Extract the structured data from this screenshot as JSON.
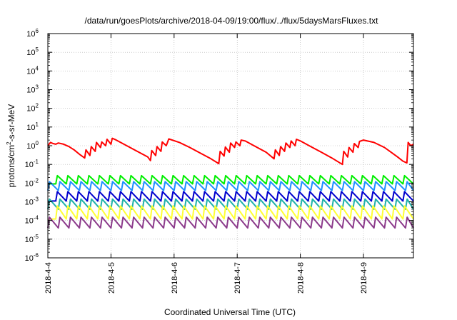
{
  "chart_data": {
    "type": "line",
    "title": "/data/run/goesPlots/archive/2018-04-09/19:00/flux/../flux/5daysMarsFluxes.txt",
    "xlabel": "Coordinated Universal Time (UTC)",
    "ylabel": {
      "base": "protons/cm",
      "exp": "2",
      "rest": "-s-sr-MeV"
    },
    "yscale": "log",
    "ylim_exp": [
      -6,
      6
    ],
    "y_ticks": [
      {
        "base": "10",
        "exp": "-6",
        "value": 1e-06
      },
      {
        "base": "10",
        "exp": "-5",
        "value": 1e-05
      },
      {
        "base": "10",
        "exp": "-4",
        "value": 0.0001
      },
      {
        "base": "10",
        "exp": "-3",
        "value": 0.001
      },
      {
        "base": "10",
        "exp": "-2",
        "value": 0.01
      },
      {
        "base": "10",
        "exp": "-1",
        "value": 0.1
      },
      {
        "base": "10",
        "exp": "0",
        "value": 1
      },
      {
        "base": "10",
        "exp": "1",
        "value": 10
      },
      {
        "base": "10",
        "exp": "2",
        "value": 100
      },
      {
        "base": "10",
        "exp": "3",
        "value": 1000
      },
      {
        "base": "10",
        "exp": "4",
        "value": 10000
      },
      {
        "base": "10",
        "exp": "5",
        "value": 100000
      },
      {
        "base": "10",
        "exp": "6",
        "value": 1000000
      }
    ],
    "xlim": [
      "2018-04-04T00:00",
      "2018-04-09T19:00"
    ],
    "x_ticks": [
      "2018-4-4",
      "2018-4-5",
      "2018-4-6",
      "2018-4-7",
      "2018-4-8",
      "2018-4-9"
    ],
    "grid": true,
    "legend": "none",
    "series": [
      {
        "color": "#ff0000",
        "x": [
          "2018-04-04T00:00",
          "2018-04-04T01:00",
          "2018-04-04T02:00",
          "2018-04-04T03:00",
          "2018-04-04T04:00",
          "2018-04-04T06:00",
          "2018-04-04T08:00",
          "2018-04-04T10:00",
          "2018-04-04T12:00",
          "2018-04-04T14:00",
          "2018-04-04T14:30",
          "2018-04-04T16:00",
          "2018-04-04T16:30",
          "2018-04-04T18:00",
          "2018-04-04T18:30",
          "2018-04-04T20:00",
          "2018-04-04T20:30",
          "2018-04-04T22:00",
          "2018-04-04T22:30",
          "2018-04-05T00:00",
          "2018-04-05T00:30",
          "2018-04-05T02:00",
          "2018-04-05T06:00",
          "2018-04-05T10:00",
          "2018-04-05T14:00",
          "2018-04-05T15:00",
          "2018-04-05T15:30",
          "2018-04-05T17:00",
          "2018-04-05T17:30",
          "2018-04-05T19:00",
          "2018-04-05T19:30",
          "2018-04-05T21:00",
          "2018-04-05T22:00",
          "2018-04-06T02:00",
          "2018-04-06T06:00",
          "2018-04-06T10:00",
          "2018-04-06T14:00",
          "2018-04-06T17:00",
          "2018-04-06T17:30",
          "2018-04-06T19:00",
          "2018-04-06T19:30",
          "2018-04-06T21:00",
          "2018-04-06T21:30",
          "2018-04-06T23:00",
          "2018-04-06T23:30",
          "2018-04-07T01:00",
          "2018-04-07T01:30",
          "2018-04-07T03:00",
          "2018-04-07T07:00",
          "2018-04-07T11:00",
          "2018-04-07T14:00",
          "2018-04-07T14:30",
          "2018-04-07T16:00",
          "2018-04-07T16:30",
          "2018-04-07T18:00",
          "2018-04-07T18:30",
          "2018-04-07T20:00",
          "2018-04-07T20:30",
          "2018-04-07T22:00",
          "2018-04-07T22:30",
          "2018-04-08T00:00",
          "2018-04-08T04:00",
          "2018-04-08T08:00",
          "2018-04-08T12:00",
          "2018-04-08T16:00",
          "2018-04-08T16:30",
          "2018-04-08T18:00",
          "2018-04-08T18:30",
          "2018-04-08T20:00",
          "2018-04-08T20:30",
          "2018-04-08T22:00",
          "2018-04-08T22:30",
          "2018-04-09T00:00",
          "2018-04-09T04:00",
          "2018-04-09T08:00",
          "2018-04-09T11:00",
          "2018-04-09T13:00",
          "2018-04-09T15:00",
          "2018-04-09T16:30",
          "2018-04-09T17:00",
          "2018-04-09T18:00",
          "2018-04-09T19:00"
        ],
        "y": [
          1.0,
          1.5,
          1.3,
          1.2,
          1.4,
          1.2,
          0.9,
          0.6,
          0.35,
          0.22,
          0.6,
          0.3,
          0.9,
          0.5,
          1.5,
          0.8,
          1.6,
          1.0,
          2.2,
          1.2,
          2.5,
          2.0,
          1.0,
          0.5,
          0.25,
          0.16,
          0.55,
          0.3,
          0.9,
          0.5,
          1.6,
          1.0,
          2.3,
          1.5,
          0.8,
          0.4,
          0.2,
          0.11,
          0.5,
          0.28,
          0.85,
          0.45,
          1.4,
          0.8,
          1.6,
          1.0,
          2.0,
          1.8,
          0.9,
          0.45,
          0.2,
          0.6,
          0.3,
          0.9,
          0.5,
          1.4,
          0.8,
          1.8,
          1.0,
          2.2,
          1.8,
          0.9,
          0.45,
          0.22,
          0.1,
          0.5,
          0.25,
          0.8,
          0.45,
          1.3,
          0.8,
          1.7,
          2.0,
          1.5,
          0.8,
          0.4,
          0.25,
          0.15,
          0.12,
          1.5,
          1.0,
          1.2
        ]
      },
      {
        "color": "#00ee00",
        "sawtooth": {
          "period_hours": 4,
          "peak": 0.025,
          "trough": 0.009
        }
      },
      {
        "color": "#1e90ff",
        "sawtooth": {
          "period_hours": 4,
          "peak": 0.012,
          "trough": 0.004
        }
      },
      {
        "color": "#0000cd",
        "sawtooth": {
          "period_hours": 4,
          "peak": 0.0035,
          "trough": 0.0011
        }
      },
      {
        "color": "#20b2aa",
        "sawtooth": {
          "period_hours": 4,
          "peak": 0.0014,
          "trough": 0.0004
        }
      },
      {
        "color": "#ffff33",
        "sawtooth": {
          "period_hours": 4,
          "peak": 0.0006,
          "trough": 0.00012
        }
      },
      {
        "color": "#8b3a8b",
        "sawtooth": {
          "period_hours": 4,
          "peak": 0.00015,
          "trough": 4e-05
        }
      }
    ]
  }
}
